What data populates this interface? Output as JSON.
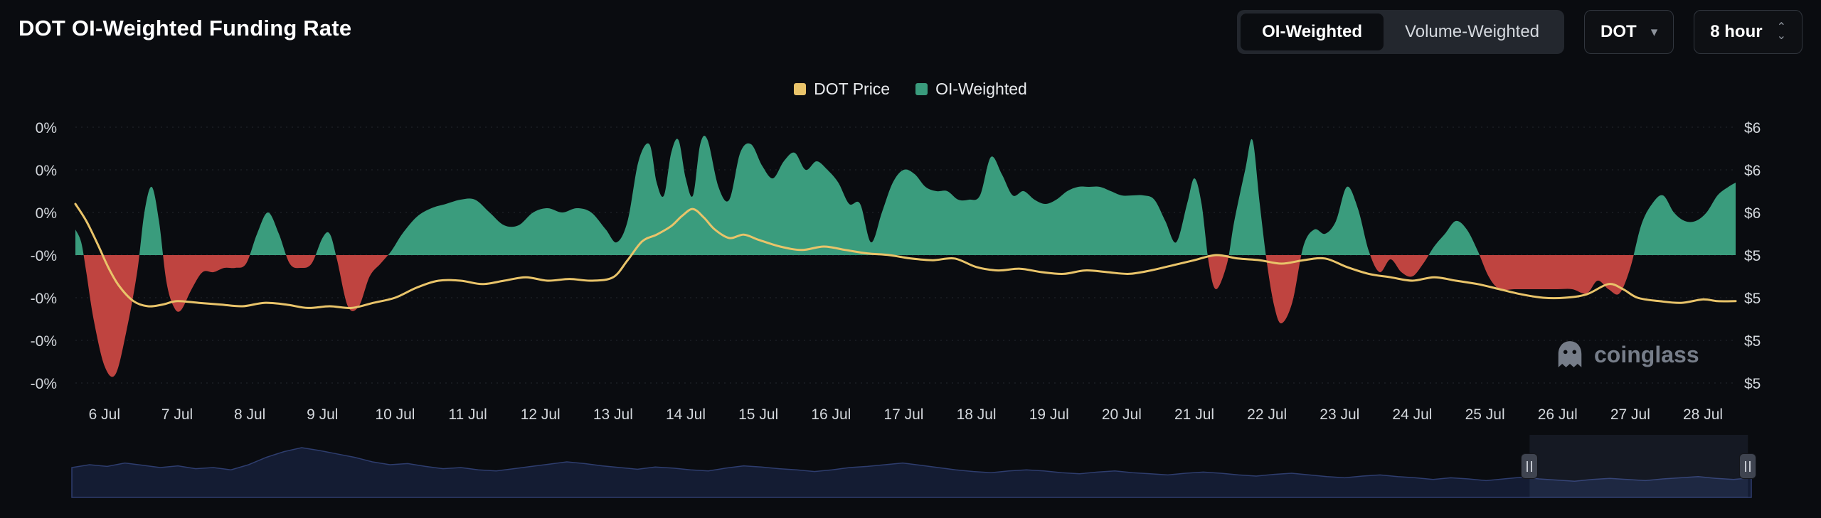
{
  "header": {
    "title": "DOT OI-Weighted Funding Rate",
    "toggle": {
      "options": [
        "OI-Weighted",
        "Volume-Weighted"
      ],
      "active": "OI-Weighted"
    },
    "symbol_select": {
      "value": "DOT"
    },
    "interval_select": {
      "value": "8 hour"
    }
  },
  "legend": [
    {
      "label": "DOT Price",
      "color": "#e9c46a"
    },
    {
      "label": "OI-Weighted",
      "color": "#3a9c7d"
    }
  ],
  "watermark": {
    "text": "coinglass"
  },
  "chart_data": {
    "type": "area+line",
    "title": "DOT OI-Weighted Funding Rate",
    "x_axis": {
      "labels": [
        "6 Jul",
        "7 Jul",
        "8 Jul",
        "9 Jul",
        "10 Jul",
        "11 Jul",
        "12 Jul",
        "13 Jul",
        "14 Jul",
        "15 Jul",
        "16 Jul",
        "17 Jul",
        "18 Jul",
        "19 Jul",
        "20 Jul",
        "21 Jul",
        "22 Jul",
        "23 Jul",
        "24 Jul",
        "25 Jul",
        "26 Jul",
        "27 Jul",
        "28 Jul"
      ],
      "start_day": 6
    },
    "x_range": [
      5.6,
      28.45
    ],
    "y_left": {
      "labels": [
        "0%",
        "0%",
        "0%",
        "-0%",
        "-0%",
        "-0%",
        "-0%"
      ],
      "values": [
        0.03,
        0.02,
        0.01,
        0,
        -0.01,
        -0.02,
        -0.03
      ],
      "unit": "%"
    },
    "y_right": {
      "labels": [
        "$6",
        "$6",
        "$6",
        "$5",
        "$5",
        "$5",
        "$5"
      ],
      "values": [
        6.5,
        6.25,
        6.0,
        5.75,
        5.5,
        5.25,
        5.0
      ],
      "unit": "$"
    },
    "grid": true,
    "legend_position": "top-center",
    "series": [
      {
        "name": "OI-Weighted",
        "type": "area",
        "axis": "left",
        "positive_color": "#3a9c7d",
        "negative_color": "#bf4440",
        "points": [
          [
            5.6,
            0.006
          ],
          [
            5.68,
            0.003
          ],
          [
            5.75,
            -0.004
          ],
          [
            5.85,
            -0.015
          ],
          [
            6.0,
            -0.026
          ],
          [
            6.15,
            -0.028
          ],
          [
            6.3,
            -0.018
          ],
          [
            6.45,
            -0.004
          ],
          [
            6.55,
            0.01
          ],
          [
            6.65,
            0.016
          ],
          [
            6.75,
            0.008
          ],
          [
            6.85,
            -0.006
          ],
          [
            6.95,
            -0.012
          ],
          [
            7.05,
            -0.013
          ],
          [
            7.2,
            -0.008
          ],
          [
            7.35,
            -0.004
          ],
          [
            7.5,
            -0.004
          ],
          [
            7.65,
            -0.003
          ],
          [
            7.8,
            -0.003
          ],
          [
            7.95,
            -0.002
          ],
          [
            8.1,
            0.005
          ],
          [
            8.25,
            0.01
          ],
          [
            8.4,
            0.005
          ],
          [
            8.55,
            -0.002
          ],
          [
            8.7,
            -0.003
          ],
          [
            8.85,
            -0.002
          ],
          [
            9.0,
            0.004
          ],
          [
            9.1,
            0.005
          ],
          [
            9.2,
            -0.001
          ],
          [
            9.35,
            -0.012
          ],
          [
            9.5,
            -0.012
          ],
          [
            9.65,
            -0.005
          ],
          [
            9.8,
            -0.002
          ],
          [
            9.95,
            0.001
          ],
          [
            10.1,
            0.005
          ],
          [
            10.3,
            0.009
          ],
          [
            10.5,
            0.011
          ],
          [
            10.7,
            0.012
          ],
          [
            10.9,
            0.013
          ],
          [
            11.1,
            0.013
          ],
          [
            11.3,
            0.01
          ],
          [
            11.5,
            0.007
          ],
          [
            11.7,
            0.007
          ],
          [
            11.9,
            0.01
          ],
          [
            12.1,
            0.011
          ],
          [
            12.3,
            0.01
          ],
          [
            12.5,
            0.011
          ],
          [
            12.7,
            0.01
          ],
          [
            12.9,
            0.006
          ],
          [
            13.05,
            0.003
          ],
          [
            13.2,
            0.008
          ],
          [
            13.35,
            0.022
          ],
          [
            13.5,
            0.026
          ],
          [
            13.6,
            0.017
          ],
          [
            13.7,
            0.014
          ],
          [
            13.8,
            0.024
          ],
          [
            13.9,
            0.027
          ],
          [
            14.0,
            0.018
          ],
          [
            14.1,
            0.014
          ],
          [
            14.2,
            0.026
          ],
          [
            14.3,
            0.027
          ],
          [
            14.45,
            0.016
          ],
          [
            14.6,
            0.013
          ],
          [
            14.75,
            0.024
          ],
          [
            14.9,
            0.026
          ],
          [
            15.05,
            0.021
          ],
          [
            15.2,
            0.018
          ],
          [
            15.35,
            0.022
          ],
          [
            15.5,
            0.024
          ],
          [
            15.65,
            0.02
          ],
          [
            15.8,
            0.022
          ],
          [
            15.95,
            0.02
          ],
          [
            16.1,
            0.017
          ],
          [
            16.25,
            0.012
          ],
          [
            16.4,
            0.012
          ],
          [
            16.55,
            0.003
          ],
          [
            16.7,
            0.01
          ],
          [
            16.85,
            0.017
          ],
          [
            17.0,
            0.02
          ],
          [
            17.15,
            0.019
          ],
          [
            17.3,
            0.016
          ],
          [
            17.45,
            0.015
          ],
          [
            17.6,
            0.015
          ],
          [
            17.75,
            0.013
          ],
          [
            17.9,
            0.013
          ],
          [
            18.05,
            0.014
          ],
          [
            18.2,
            0.023
          ],
          [
            18.35,
            0.019
          ],
          [
            18.5,
            0.014
          ],
          [
            18.65,
            0.015
          ],
          [
            18.8,
            0.013
          ],
          [
            18.95,
            0.012
          ],
          [
            19.1,
            0.013
          ],
          [
            19.25,
            0.015
          ],
          [
            19.4,
            0.016
          ],
          [
            19.55,
            0.016
          ],
          [
            19.7,
            0.016
          ],
          [
            19.85,
            0.015
          ],
          [
            20.0,
            0.014
          ],
          [
            20.15,
            0.014
          ],
          [
            20.3,
            0.014
          ],
          [
            20.45,
            0.013
          ],
          [
            20.6,
            0.008
          ],
          [
            20.75,
            0.003
          ],
          [
            20.9,
            0.012
          ],
          [
            21.0,
            0.018
          ],
          [
            21.1,
            0.012
          ],
          [
            21.2,
            -0.002
          ],
          [
            21.3,
            -0.008
          ],
          [
            21.45,
            -0.002
          ],
          [
            21.55,
            0.008
          ],
          [
            21.7,
            0.02
          ],
          [
            21.8,
            0.027
          ],
          [
            21.9,
            0.012
          ],
          [
            22.0,
            -0.002
          ],
          [
            22.1,
            -0.012
          ],
          [
            22.2,
            -0.016
          ],
          [
            22.35,
            -0.011
          ],
          [
            22.5,
            0.002
          ],
          [
            22.65,
            0.006
          ],
          [
            22.8,
            0.005
          ],
          [
            22.95,
            0.008
          ],
          [
            23.1,
            0.016
          ],
          [
            23.25,
            0.011
          ],
          [
            23.4,
            0.001
          ],
          [
            23.55,
            -0.004
          ],
          [
            23.7,
            -0.001
          ],
          [
            23.85,
            -0.004
          ],
          [
            24.0,
            -0.005
          ],
          [
            24.15,
            -0.002
          ],
          [
            24.3,
            0.002
          ],
          [
            24.45,
            0.005
          ],
          [
            24.6,
            0.008
          ],
          [
            24.75,
            0.006
          ],
          [
            24.9,
            0.001
          ],
          [
            25.05,
            -0.005
          ],
          [
            25.2,
            -0.008
          ],
          [
            25.4,
            -0.008
          ],
          [
            25.6,
            -0.008
          ],
          [
            25.8,
            -0.008
          ],
          [
            26.0,
            -0.008
          ],
          [
            26.2,
            -0.008
          ],
          [
            26.4,
            -0.009
          ],
          [
            26.55,
            -0.006
          ],
          [
            26.7,
            -0.008
          ],
          [
            26.85,
            -0.009
          ],
          [
            27.0,
            -0.003
          ],
          [
            27.15,
            0.007
          ],
          [
            27.3,
            0.012
          ],
          [
            27.45,
            0.014
          ],
          [
            27.6,
            0.01
          ],
          [
            27.75,
            0.008
          ],
          [
            27.9,
            0.008
          ],
          [
            28.05,
            0.01
          ],
          [
            28.2,
            0.014
          ],
          [
            28.35,
            0.016
          ],
          [
            28.45,
            0.017
          ]
        ]
      },
      {
        "name": "DOT Price",
        "type": "line",
        "axis": "right",
        "color": "#e9c46a",
        "points": [
          [
            5.6,
            6.05
          ],
          [
            5.75,
            5.95
          ],
          [
            5.9,
            5.82
          ],
          [
            6.05,
            5.68
          ],
          [
            6.2,
            5.57
          ],
          [
            6.4,
            5.48
          ],
          [
            6.6,
            5.45
          ],
          [
            6.8,
            5.46
          ],
          [
            7.0,
            5.48
          ],
          [
            7.3,
            5.47
          ],
          [
            7.6,
            5.46
          ],
          [
            7.9,
            5.45
          ],
          [
            8.2,
            5.47
          ],
          [
            8.5,
            5.46
          ],
          [
            8.8,
            5.44
          ],
          [
            9.1,
            5.45
          ],
          [
            9.4,
            5.44
          ],
          [
            9.7,
            5.47
          ],
          [
            10.0,
            5.5
          ],
          [
            10.3,
            5.56
          ],
          [
            10.6,
            5.6
          ],
          [
            10.9,
            5.6
          ],
          [
            11.2,
            5.58
          ],
          [
            11.5,
            5.6
          ],
          [
            11.8,
            5.62
          ],
          [
            12.1,
            5.6
          ],
          [
            12.4,
            5.61
          ],
          [
            12.7,
            5.6
          ],
          [
            13.0,
            5.62
          ],
          [
            13.2,
            5.72
          ],
          [
            13.4,
            5.83
          ],
          [
            13.6,
            5.87
          ],
          [
            13.8,
            5.92
          ],
          [
            13.95,
            5.98
          ],
          [
            14.1,
            6.02
          ],
          [
            14.25,
            5.97
          ],
          [
            14.4,
            5.9
          ],
          [
            14.6,
            5.85
          ],
          [
            14.8,
            5.87
          ],
          [
            15.0,
            5.84
          ],
          [
            15.3,
            5.8
          ],
          [
            15.6,
            5.78
          ],
          [
            15.9,
            5.8
          ],
          [
            16.2,
            5.78
          ],
          [
            16.5,
            5.76
          ],
          [
            16.8,
            5.75
          ],
          [
            17.1,
            5.73
          ],
          [
            17.4,
            5.72
          ],
          [
            17.7,
            5.73
          ],
          [
            18.0,
            5.68
          ],
          [
            18.3,
            5.66
          ],
          [
            18.6,
            5.67
          ],
          [
            18.9,
            5.65
          ],
          [
            19.2,
            5.64
          ],
          [
            19.5,
            5.66
          ],
          [
            19.8,
            5.65
          ],
          [
            20.1,
            5.64
          ],
          [
            20.4,
            5.66
          ],
          [
            20.7,
            5.69
          ],
          [
            21.0,
            5.72
          ],
          [
            21.3,
            5.75
          ],
          [
            21.6,
            5.73
          ],
          [
            21.9,
            5.72
          ],
          [
            22.2,
            5.7
          ],
          [
            22.5,
            5.72
          ],
          [
            22.8,
            5.73
          ],
          [
            23.1,
            5.68
          ],
          [
            23.4,
            5.64
          ],
          [
            23.7,
            5.62
          ],
          [
            24.0,
            5.6
          ],
          [
            24.3,
            5.62
          ],
          [
            24.6,
            5.6
          ],
          [
            24.9,
            5.58
          ],
          [
            25.2,
            5.55
          ],
          [
            25.5,
            5.52
          ],
          [
            25.8,
            5.5
          ],
          [
            26.1,
            5.5
          ],
          [
            26.4,
            5.52
          ],
          [
            26.7,
            5.58
          ],
          [
            26.9,
            5.55
          ],
          [
            27.1,
            5.5
          ],
          [
            27.4,
            5.48
          ],
          [
            27.7,
            5.47
          ],
          [
            28.0,
            5.49
          ],
          [
            28.2,
            5.48
          ],
          [
            28.45,
            5.48
          ]
        ]
      }
    ],
    "navigator": {
      "values": [
        0.5,
        0.55,
        0.52,
        0.58,
        0.54,
        0.5,
        0.53,
        0.48,
        0.5,
        0.46,
        0.55,
        0.68,
        0.78,
        0.85,
        0.8,
        0.74,
        0.68,
        0.6,
        0.55,
        0.57,
        0.52,
        0.48,
        0.5,
        0.46,
        0.44,
        0.48,
        0.52,
        0.56,
        0.6,
        0.57,
        0.53,
        0.5,
        0.47,
        0.51,
        0.49,
        0.46,
        0.44,
        0.49,
        0.53,
        0.51,
        0.48,
        0.46,
        0.43,
        0.46,
        0.5,
        0.52,
        0.55,
        0.58,
        0.54,
        0.5,
        0.46,
        0.43,
        0.41,
        0.44,
        0.46,
        0.44,
        0.41,
        0.39,
        0.42,
        0.44,
        0.41,
        0.39,
        0.37,
        0.4,
        0.42,
        0.4,
        0.37,
        0.35,
        0.38,
        0.4,
        0.37,
        0.34,
        0.32,
        0.35,
        0.37,
        0.34,
        0.32,
        0.29,
        0.32,
        0.3,
        0.27,
        0.3,
        0.33,
        0.3,
        0.28,
        0.26,
        0.29,
        0.31,
        0.29,
        0.27,
        0.3,
        0.32,
        0.34,
        0.31,
        0.29,
        0.32
      ],
      "selection": [
        0.868,
        0.998
      ]
    }
  }
}
